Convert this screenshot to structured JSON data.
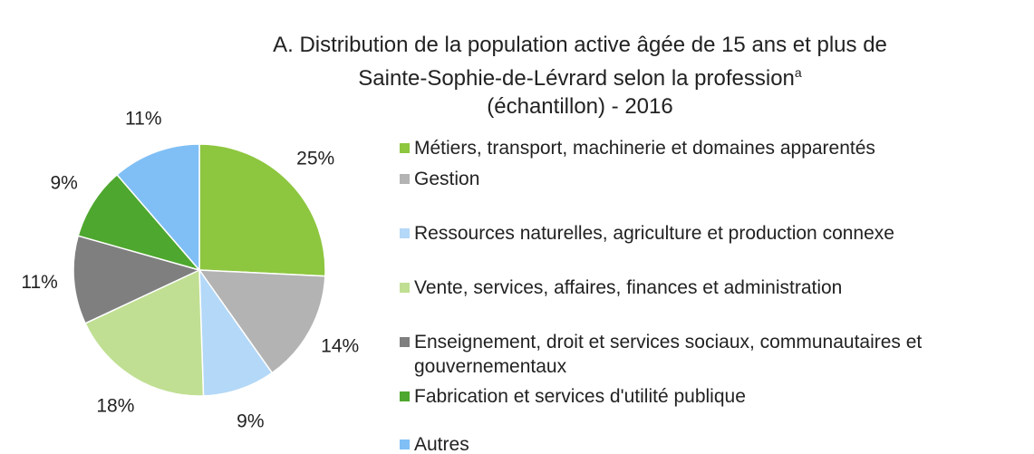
{
  "chart_data": {
    "type": "pie",
    "title": [
      "A. Distribution de la population active âgée de 15 ans et plus de",
      "Sainte-Sophie-de-Lévrard selon la profession",
      "(échantillon) - 2016"
    ],
    "title_superscript": "a",
    "categories": [
      "Métiers, transport, machinerie et domaines apparentés",
      "Gestion",
      "Ressources naturelles, agriculture et production connexe",
      "Vente, services, affaires, finances et administration",
      "Enseignement, droit et services sociaux, communautaires et gouvernementaux",
      "Fabrication et services d'utilité publique",
      "Autres"
    ],
    "values": [
      25,
      14,
      9,
      18,
      11,
      9,
      11
    ],
    "value_labels": [
      "25%",
      "14%",
      "9%",
      "18%",
      "11%",
      "9%",
      "11%"
    ],
    "colors": [
      "#8dc63f",
      "#b3b3b3",
      "#b4d8f7",
      "#c0df93",
      "#7f7f7f",
      "#4ea72e",
      "#80bff5"
    ]
  }
}
